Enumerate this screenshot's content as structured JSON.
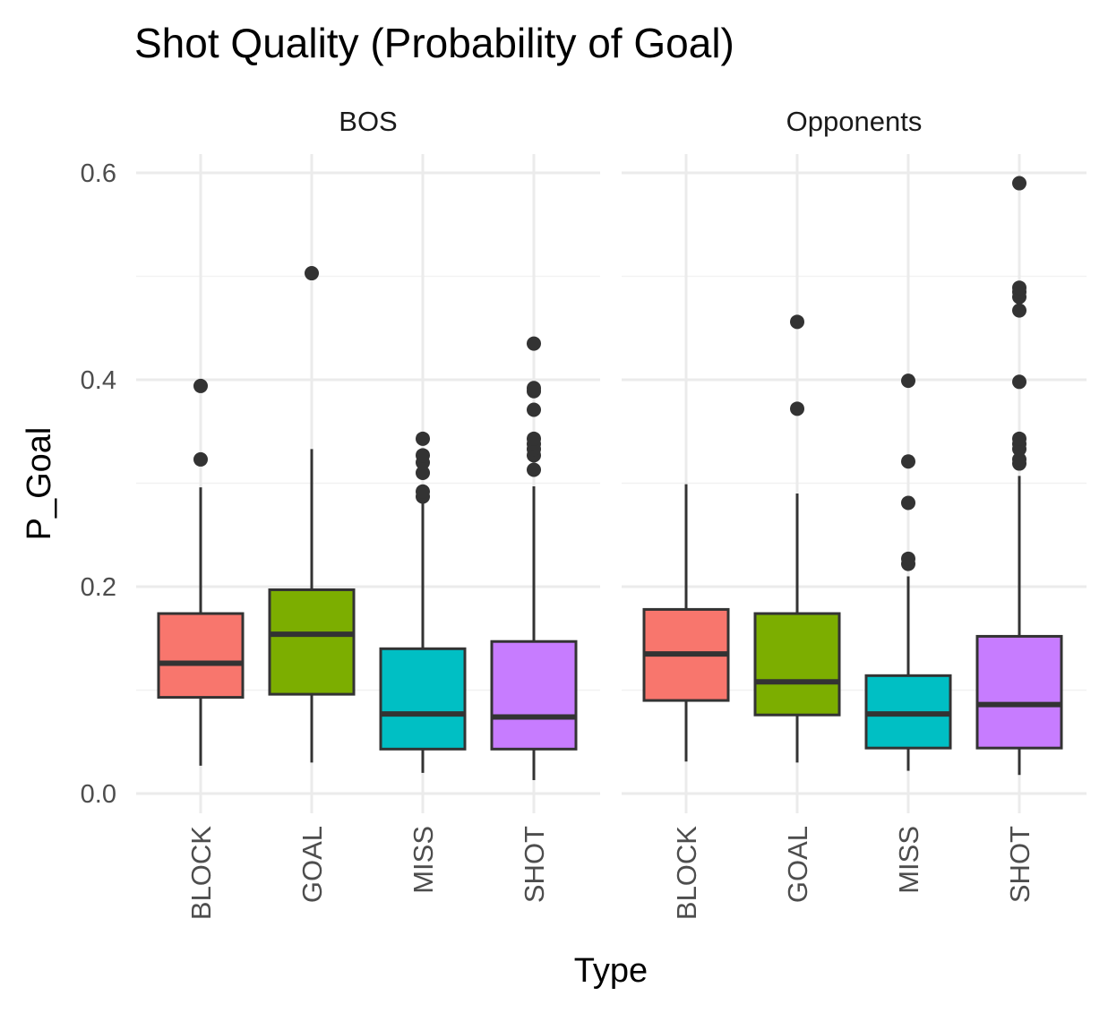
{
  "chart_data": {
    "type": "boxplot",
    "title": "Shot Quality (Probability of Goal)",
    "xlabel": "Type",
    "ylabel": "P_Goal",
    "ylim": [
      0,
      0.6
    ],
    "y_ticks": [
      "0.0",
      "0.2",
      "0.4",
      "0.6"
    ],
    "y_tick_values": [
      0,
      0.2,
      0.4,
      0.6
    ],
    "grid": true,
    "legend": "none",
    "categories": [
      "BLOCK",
      "GOAL",
      "MISS",
      "SHOT"
    ],
    "colors": {
      "BLOCK": "#f8766d",
      "GOAL": "#7cae00",
      "MISS": "#00bfc4",
      "SHOT": "#c77cff"
    },
    "facets": [
      {
        "name": "BOS",
        "boxes": [
          {
            "category": "BLOCK",
            "whisker_low": 0.027,
            "q1": 0.093,
            "median": 0.126,
            "q3": 0.174,
            "whisker_high": 0.296,
            "outliers": [
              0.323,
              0.394
            ]
          },
          {
            "category": "GOAL",
            "whisker_low": 0.03,
            "q1": 0.096,
            "median": 0.154,
            "q3": 0.197,
            "whisker_high": 0.333,
            "outliers": [
              0.503
            ]
          },
          {
            "category": "MISS",
            "whisker_low": 0.02,
            "q1": 0.043,
            "median": 0.077,
            "q3": 0.14,
            "whisker_high": 0.283,
            "outliers": [
              0.287,
              0.292,
              0.31,
              0.32,
              0.327,
              0.343
            ]
          },
          {
            "category": "SHOT",
            "whisker_low": 0.013,
            "q1": 0.043,
            "median": 0.074,
            "q3": 0.147,
            "whisker_high": 0.297,
            "outliers": [
              0.313,
              0.327,
              0.333,
              0.338,
              0.343,
              0.371,
              0.389,
              0.392,
              0.435
            ]
          }
        ]
      },
      {
        "name": "Opponents",
        "boxes": [
          {
            "category": "BLOCK",
            "whisker_low": 0.031,
            "q1": 0.09,
            "median": 0.135,
            "q3": 0.178,
            "whisker_high": 0.299,
            "outliers": []
          },
          {
            "category": "GOAL",
            "whisker_low": 0.03,
            "q1": 0.076,
            "median": 0.108,
            "q3": 0.174,
            "whisker_high": 0.29,
            "outliers": [
              0.372,
              0.456
            ]
          },
          {
            "category": "MISS",
            "whisker_low": 0.022,
            "q1": 0.044,
            "median": 0.077,
            "q3": 0.114,
            "whisker_high": 0.21,
            "outliers": [
              0.222,
              0.227,
              0.281,
              0.321,
              0.399
            ]
          },
          {
            "category": "SHOT",
            "whisker_low": 0.018,
            "q1": 0.044,
            "median": 0.086,
            "q3": 0.152,
            "whisker_high": 0.307,
            "outliers": [
              0.319,
              0.323,
              0.333,
              0.338,
              0.343,
              0.398,
              0.467,
              0.48,
              0.485,
              0.489,
              0.59
            ]
          }
        ]
      }
    ]
  }
}
